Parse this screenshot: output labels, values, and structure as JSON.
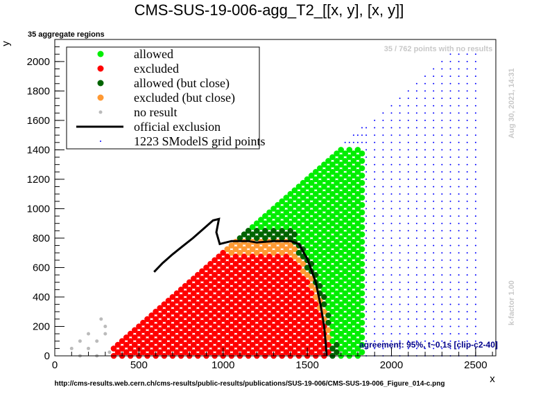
{
  "chart_data": {
    "type": "scatter",
    "title": "CMS-SUS-19-006-agg_T2_[[x, y], [x, y]]",
    "subtitle": "35 aggregate regions",
    "xlabel": "x",
    "ylabel": "y",
    "xlim": [
      0,
      2620
    ],
    "ylim": [
      0,
      2150
    ],
    "xticks": [
      0,
      500,
      1000,
      1500,
      2000,
      2500
    ],
    "yticks": [
      0,
      200,
      400,
      600,
      800,
      1000,
      1200,
      1400,
      1600,
      1800,
      2000
    ],
    "grid": false,
    "legend_position": "top-left",
    "legend": [
      {
        "label": "allowed",
        "marker": "dot",
        "color": "#00ee00"
      },
      {
        "label": "excluded",
        "marker": "dot",
        "color": "#ff0000"
      },
      {
        "label": "allowed (but close)",
        "marker": "dot",
        "color": "#006400"
      },
      {
        "label": "excluded (but close)",
        "marker": "dot",
        "color": "#ff9933"
      },
      {
        "label": "no result",
        "marker": "small-dot",
        "color": "#bbbbbb"
      },
      {
        "label": "official exclusion",
        "marker": "line",
        "color": "#000000"
      },
      {
        "label": "1223 SModelS grid points",
        "marker": "tiny-dot",
        "color": "#0000ff"
      }
    ],
    "official_exclusion": {
      "x": [
        590,
        640,
        700,
        760,
        820,
        880,
        940,
        975,
        960,
        980,
        1050,
        1150,
        1200,
        1300,
        1400,
        1450,
        1500,
        1550,
        1580,
        1600,
        1610,
        1615
      ],
      "y": [
        570,
        630,
        690,
        745,
        800,
        860,
        920,
        930,
        840,
        760,
        780,
        780,
        770,
        780,
        780,
        760,
        660,
        500,
        340,
        200,
        80,
        0
      ]
    },
    "region_note": "35 / 762 points with no results",
    "timestamp": "Aug 30, 2021, 14:31",
    "kfactor": "k-factor 1.00",
    "agreement": "agreement: 95%, t~0.1s [clip-c2-40]",
    "source_url": "http://cms-results.web.cern.ch/cms-results/public-results/publications/SUS-19-006/CMS-SUS-19-006_Figure_014-c.png",
    "grid_points_count": 1223
  },
  "colors": {
    "allowed": "#00ee00",
    "excluded": "#ff0000",
    "allowed_close": "#006400",
    "excluded_close": "#ff9933",
    "no_result": "#bbbbbb",
    "grid_point": "#0000ff"
  }
}
